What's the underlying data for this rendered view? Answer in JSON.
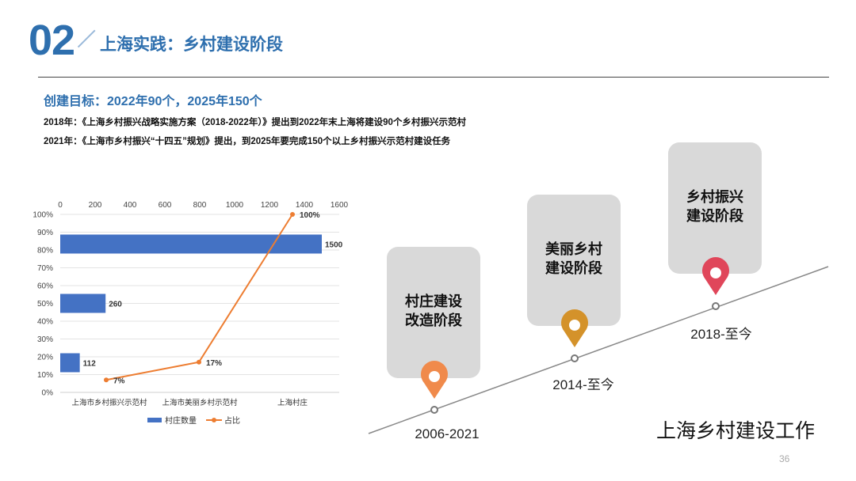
{
  "header": {
    "section_number": "02",
    "section_title": "上海实践：乡村建设阶段"
  },
  "content": {
    "goal": "创建目标：2022年90个，2025年150个",
    "line1": "2018年：《上海乡村振兴战略实施方案（2018-2022年）》提出到2022年末上海将建设90个乡村振兴示范村",
    "line2": "2021年：《上海市乡村振兴“十四五”规划》提出，到2025年要完成150个以上乡村振兴示范村建设任务"
  },
  "chart_data": {
    "type": "bar",
    "orientation": "horizontal-bars-with-line",
    "categories": [
      "上海市乡村振兴示范村",
      "上海市美丽乡村示范村",
      "上海村庄"
    ],
    "series": [
      {
        "name": "村庄数量",
        "type": "bar",
        "values": [
          112,
          260,
          1500
        ],
        "labels": [
          "112",
          "260",
          "1500"
        ],
        "color": "#4472c4"
      },
      {
        "name": "占比",
        "type": "line",
        "values": [
          7,
          17,
          100
        ],
        "labels": [
          "7%",
          "17%",
          "100%"
        ],
        "color": "#ed7d31"
      }
    ],
    "x_axis_top": {
      "ticks": [
        "0",
        "200",
        "400",
        "600",
        "800",
        "1000",
        "1200",
        "1400",
        "1600"
      ],
      "range": [
        0,
        1600
      ]
    },
    "y_axis_left": {
      "ticks": [
        "0%",
        "10%",
        "20%",
        "30%",
        "40%",
        "50%",
        "60%",
        "70%",
        "80%",
        "90%",
        "100%"
      ],
      "range": [
        0,
        100
      ]
    },
    "legend": {
      "position": "bottom",
      "items": [
        "村庄数量",
        "占比"
      ]
    },
    "grid": true
  },
  "timeline": {
    "caption": "上海乡村建设工作",
    "stages": [
      {
        "title_line1": "村庄建设",
        "title_line2": "改造阶段",
        "period": "2006-2021",
        "pin_color": "#f08a4b"
      },
      {
        "title_line1": "美丽乡村",
        "title_line2": "建设阶段",
        "period": "2014-至今",
        "pin_color": "#d4922a"
      },
      {
        "title_line1": "乡村振兴",
        "title_line2": "建设阶段",
        "period": "2018-至今",
        "pin_color": "#e0465a"
      }
    ]
  },
  "page_number": "36"
}
